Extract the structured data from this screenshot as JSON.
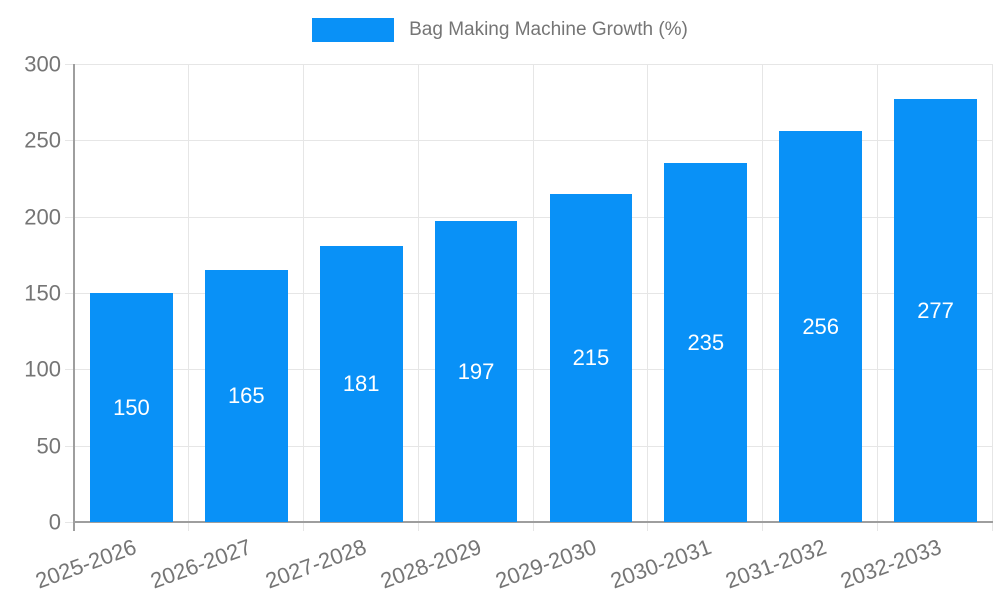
{
  "chart_data": {
    "type": "bar",
    "title": "Bag Making Machine Growth (%)",
    "series_name": "Bag Making Machine Growth (%)",
    "categories": [
      "2025-2026",
      "2026-2027",
      "2027-2028",
      "2028-2029",
      "2029-2030",
      "2030-2031",
      "2031-2032",
      "2032-2033"
    ],
    "values": [
      150,
      165,
      181,
      197,
      215,
      235,
      256,
      277
    ],
    "value_labels": [
      "150",
      "165",
      "181",
      "197",
      "215",
      "235",
      "256",
      "277"
    ],
    "xlabel": "",
    "ylabel": "",
    "ylim": [
      0,
      300
    ],
    "yticks": [
      0,
      50,
      100,
      150,
      200,
      250,
      300
    ],
    "ytick_labels": [
      "0",
      "50",
      "100",
      "150",
      "200",
      "250",
      "300"
    ],
    "grid": true,
    "legend_position": "top",
    "x_label_rotation_deg": -20,
    "bar_width_fraction": 0.72,
    "colors": {
      "bar": "#0991f7",
      "grid": "#e6e6e6",
      "axis": "#9e9e9e",
      "tick_label": "#757575",
      "value_label": "#ffffff",
      "title": "#757575",
      "background": "#ffffff"
    }
  }
}
